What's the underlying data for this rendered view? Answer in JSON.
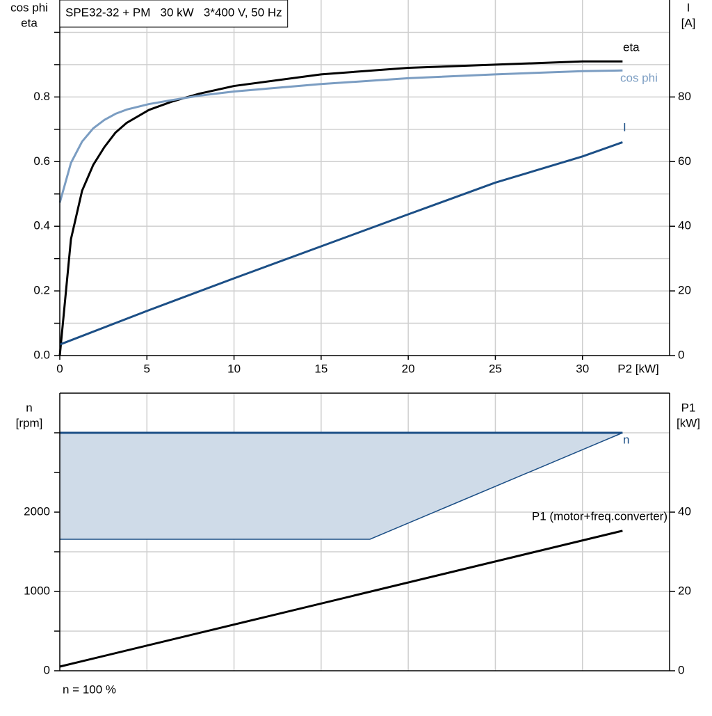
{
  "chart_data": [
    {
      "type": "line",
      "title": "SPE32-32 + PM   30 kW   3*400 V, 50 Hz",
      "xlabel": "P2 [kW]",
      "ylabel": [
        "cos phi",
        "eta"
      ],
      "y2label": [
        "I",
        "[A]"
      ],
      "xlim": [
        0,
        35
      ],
      "xticks": [
        0,
        5,
        10,
        15,
        20,
        25,
        30
      ],
      "ylim": [
        0,
        1.1
      ],
      "yticks": [
        {
          "value": 0,
          "label": "0.0"
        },
        0.2,
        0.4,
        0.6,
        0.8
      ],
      "yminor": [
        0.1,
        0.3,
        0.5,
        0.7,
        0.9,
        1.0
      ],
      "y2lim": [
        0,
        110
      ],
      "y2ticks": [
        0,
        20,
        40,
        60,
        80
      ],
      "grid": true,
      "series": [
        {
          "name": "eta",
          "color": "#000000",
          "x": [
            0,
            0.64,
            1.28,
            1.92,
            2.56,
            3.2,
            3.84,
            5.12,
            6.4,
            8,
            10,
            15,
            20,
            25,
            30,
            32.3
          ],
          "values": [
            0,
            0.36,
            0.51,
            0.59,
            0.645,
            0.69,
            0.72,
            0.76,
            0.785,
            0.81,
            0.834,
            0.87,
            0.89,
            0.9,
            0.91,
            0.91
          ]
        },
        {
          "name": "cos phi",
          "color": "#7b9dc2",
          "x": [
            0,
            0.64,
            1.28,
            1.92,
            2.56,
            3.2,
            3.84,
            5.12,
            6.4,
            8,
            10,
            15,
            20,
            25,
            30,
            32.3
          ],
          "values": [
            0.473,
            0.596,
            0.662,
            0.703,
            0.729,
            0.748,
            0.761,
            0.778,
            0.79,
            0.804,
            0.817,
            0.84,
            0.858,
            0.87,
            0.88,
            0.882
          ]
        },
        {
          "name": "I",
          "color": "#1c4f86",
          "axis": "y2",
          "x": [
            0,
            5,
            10,
            15,
            20,
            25,
            30,
            32.3
          ],
          "values": [
            3.4,
            13.8,
            23.9,
            33.8,
            43.7,
            53.5,
            61.6,
            66
          ]
        }
      ]
    },
    {
      "type": "line",
      "ylabel": [
        "n",
        "[rpm]"
      ],
      "y2label": [
        "P1",
        "[kW]"
      ],
      "note": "n = 100 %",
      "xlim": [
        0,
        35
      ],
      "xgrid": [
        5,
        10,
        15,
        20,
        25,
        30
      ],
      "ylim": [
        0,
        3500
      ],
      "yticks": [
        0,
        1000,
        2000
      ],
      "yminor": [
        500,
        1500,
        2500,
        3000
      ],
      "y2lim": [
        0,
        70
      ],
      "y2ticks": [
        0,
        20,
        40
      ],
      "grid": true,
      "series": [
        {
          "name": "n",
          "color": "#1c4f86",
          "x": [
            0,
            32.3
          ],
          "values": [
            3000,
            3000
          ],
          "band": {
            "color": "#cfdbe8",
            "x": [
              0,
              17.8,
              32.3
            ],
            "lower": [
              1658,
              1658,
              3000
            ]
          }
        },
        {
          "name": "P1 (motor+freq.converter)",
          "color": "#000000",
          "axis": "y2",
          "x": [
            0,
            32.3
          ],
          "values": [
            1.05,
            35.3
          ]
        }
      ]
    }
  ]
}
